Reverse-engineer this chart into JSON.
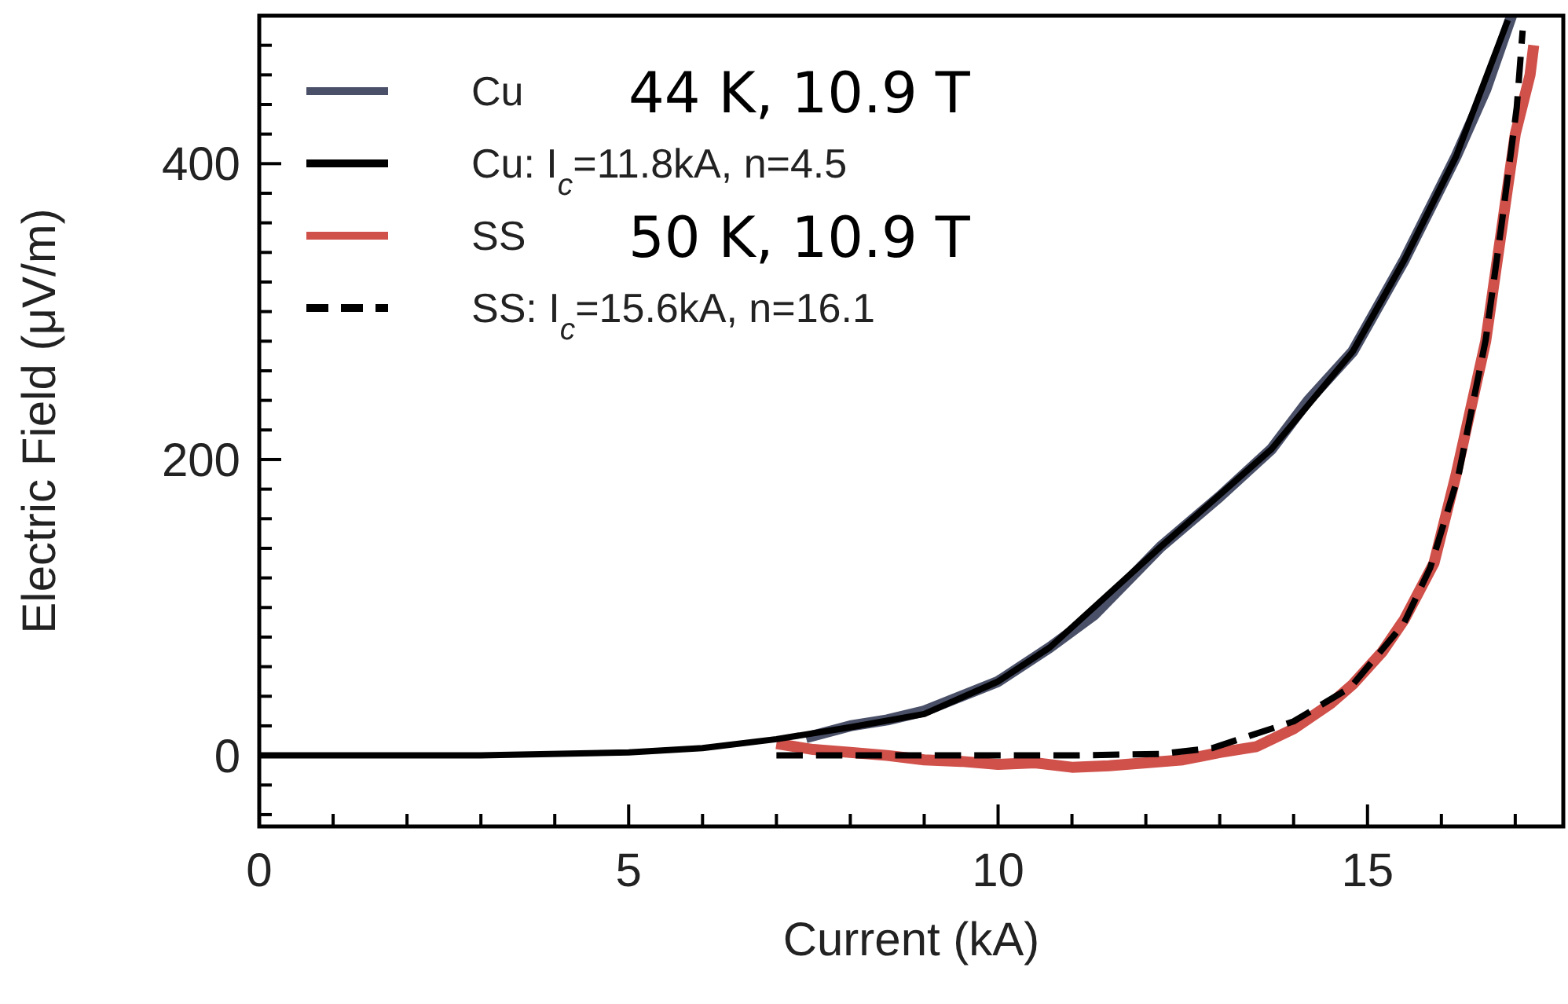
{
  "chart_data": {
    "type": "line",
    "xlabel": "Current (kA)",
    "ylabel": "Electric Field (μV/m)",
    "xlim": [
      0,
      17.65
    ],
    "ylim": [
      -48,
      500
    ],
    "xticks": [
      0,
      {
        "value": 1,
        "label": null
      },
      {
        "value": 2,
        "label": null
      },
      {
        "value": 3,
        "label": null
      },
      {
        "value": 4,
        "label": null
      },
      5,
      {
        "value": 6,
        "label": null
      },
      {
        "value": 7,
        "label": null
      },
      {
        "value": 8,
        "label": null
      },
      {
        "value": 9,
        "label": null
      },
      10,
      {
        "value": 11,
        "label": null
      },
      {
        "value": 12,
        "label": null
      },
      {
        "value": 13,
        "label": null
      },
      {
        "value": 14,
        "label": null
      },
      15,
      {
        "value": 16,
        "label": null
      },
      {
        "value": 17,
        "label": null
      }
    ],
    "yticks": [
      {
        "value": -40,
        "label": null
      },
      {
        "value": -20,
        "label": null
      },
      0,
      {
        "value": 20,
        "label": null
      },
      {
        "value": 40,
        "label": null
      },
      {
        "value": 60,
        "label": null
      },
      {
        "value": 80,
        "label": null
      },
      {
        "value": 100,
        "label": null
      },
      {
        "value": 120,
        "label": null
      },
      {
        "value": 140,
        "label": null
      },
      {
        "value": 160,
        "label": null
      },
      {
        "value": 180,
        "label": null
      },
      200,
      {
        "value": 220,
        "label": null
      },
      {
        "value": 240,
        "label": null
      },
      {
        "value": 260,
        "label": null
      },
      {
        "value": 280,
        "label": null
      },
      {
        "value": 300,
        "label": null
      },
      {
        "value": 320,
        "label": null
      },
      {
        "value": 340,
        "label": null
      },
      {
        "value": 360,
        "label": null
      },
      {
        "value": 380,
        "label": null
      },
      400,
      {
        "value": 420,
        "label": null
      },
      {
        "value": 440,
        "label": null
      },
      {
        "value": 460,
        "label": null
      },
      {
        "value": 480,
        "label": null
      }
    ],
    "grid": false,
    "legend": "top left",
    "marker": "none",
    "annotations": [
      "44 K, 10.9 T",
      "50 K, 10.9 T"
    ],
    "series": [
      {
        "name": "Cu",
        "color": "#4a5068",
        "line_style": "solid",
        "x": [
          7.4,
          8,
          8.5,
          9,
          9.5,
          10,
          10.7,
          11.3,
          12.2,
          13,
          13.7,
          14.2,
          14.8,
          15.5,
          16.2,
          16.6,
          16.95
        ],
        "values": [
          12,
          20,
          24,
          30,
          40,
          50,
          73,
          95,
          141,
          175,
          207,
          240,
          273,
          335,
          405,
          450,
          500
        ]
      },
      {
        "name": "Cu: I$_{c}$=11.8kA, n=4.5",
        "color": "#000000",
        "line_style": "solid",
        "x": [
          0,
          3,
          5,
          6,
          7,
          8,
          9,
          10,
          10.7,
          12.2,
          13.7,
          14.8,
          15.5,
          16.2,
          16.9
        ],
        "values": [
          0,
          0,
          2,
          5,
          11,
          19,
          28,
          50,
          73,
          141,
          207,
          273,
          335,
          405,
          497
        ]
      },
      {
        "name": "SS",
        "color": "#d0504a",
        "line_style": "solid",
        "x": [
          7,
          7.5,
          8,
          8.5,
          9,
          9.5,
          10,
          10.5,
          11,
          11.5,
          12,
          12.5,
          13,
          13.5,
          14,
          14.5,
          14.8,
          15.2,
          15.5,
          15.9,
          16.2,
          16.6,
          16.8,
          17,
          17.2,
          17.25
        ],
        "values": [
          8,
          4,
          2,
          0,
          -3,
          -4,
          -6,
          -5,
          -8,
          -7,
          -5,
          -3,
          2,
          6,
          18,
          35,
          48,
          70,
          92,
          130,
          190,
          280,
          350,
          420,
          460,
          480
        ]
      },
      {
        "name": "SS: I$_{c}$=15.6kA, n=16.1",
        "color": "#000000",
        "line_style": "dashed",
        "x": [
          7,
          9,
          11,
          12.2,
          12.9,
          14,
          14.77,
          15.49,
          15.85,
          16.23,
          16.6,
          16.81,
          17.02,
          17.1
        ],
        "values": [
          0,
          0,
          0,
          1,
          5,
          23,
          46,
          89,
          127,
          189,
          281,
          357,
          438,
          490
        ]
      }
    ]
  }
}
